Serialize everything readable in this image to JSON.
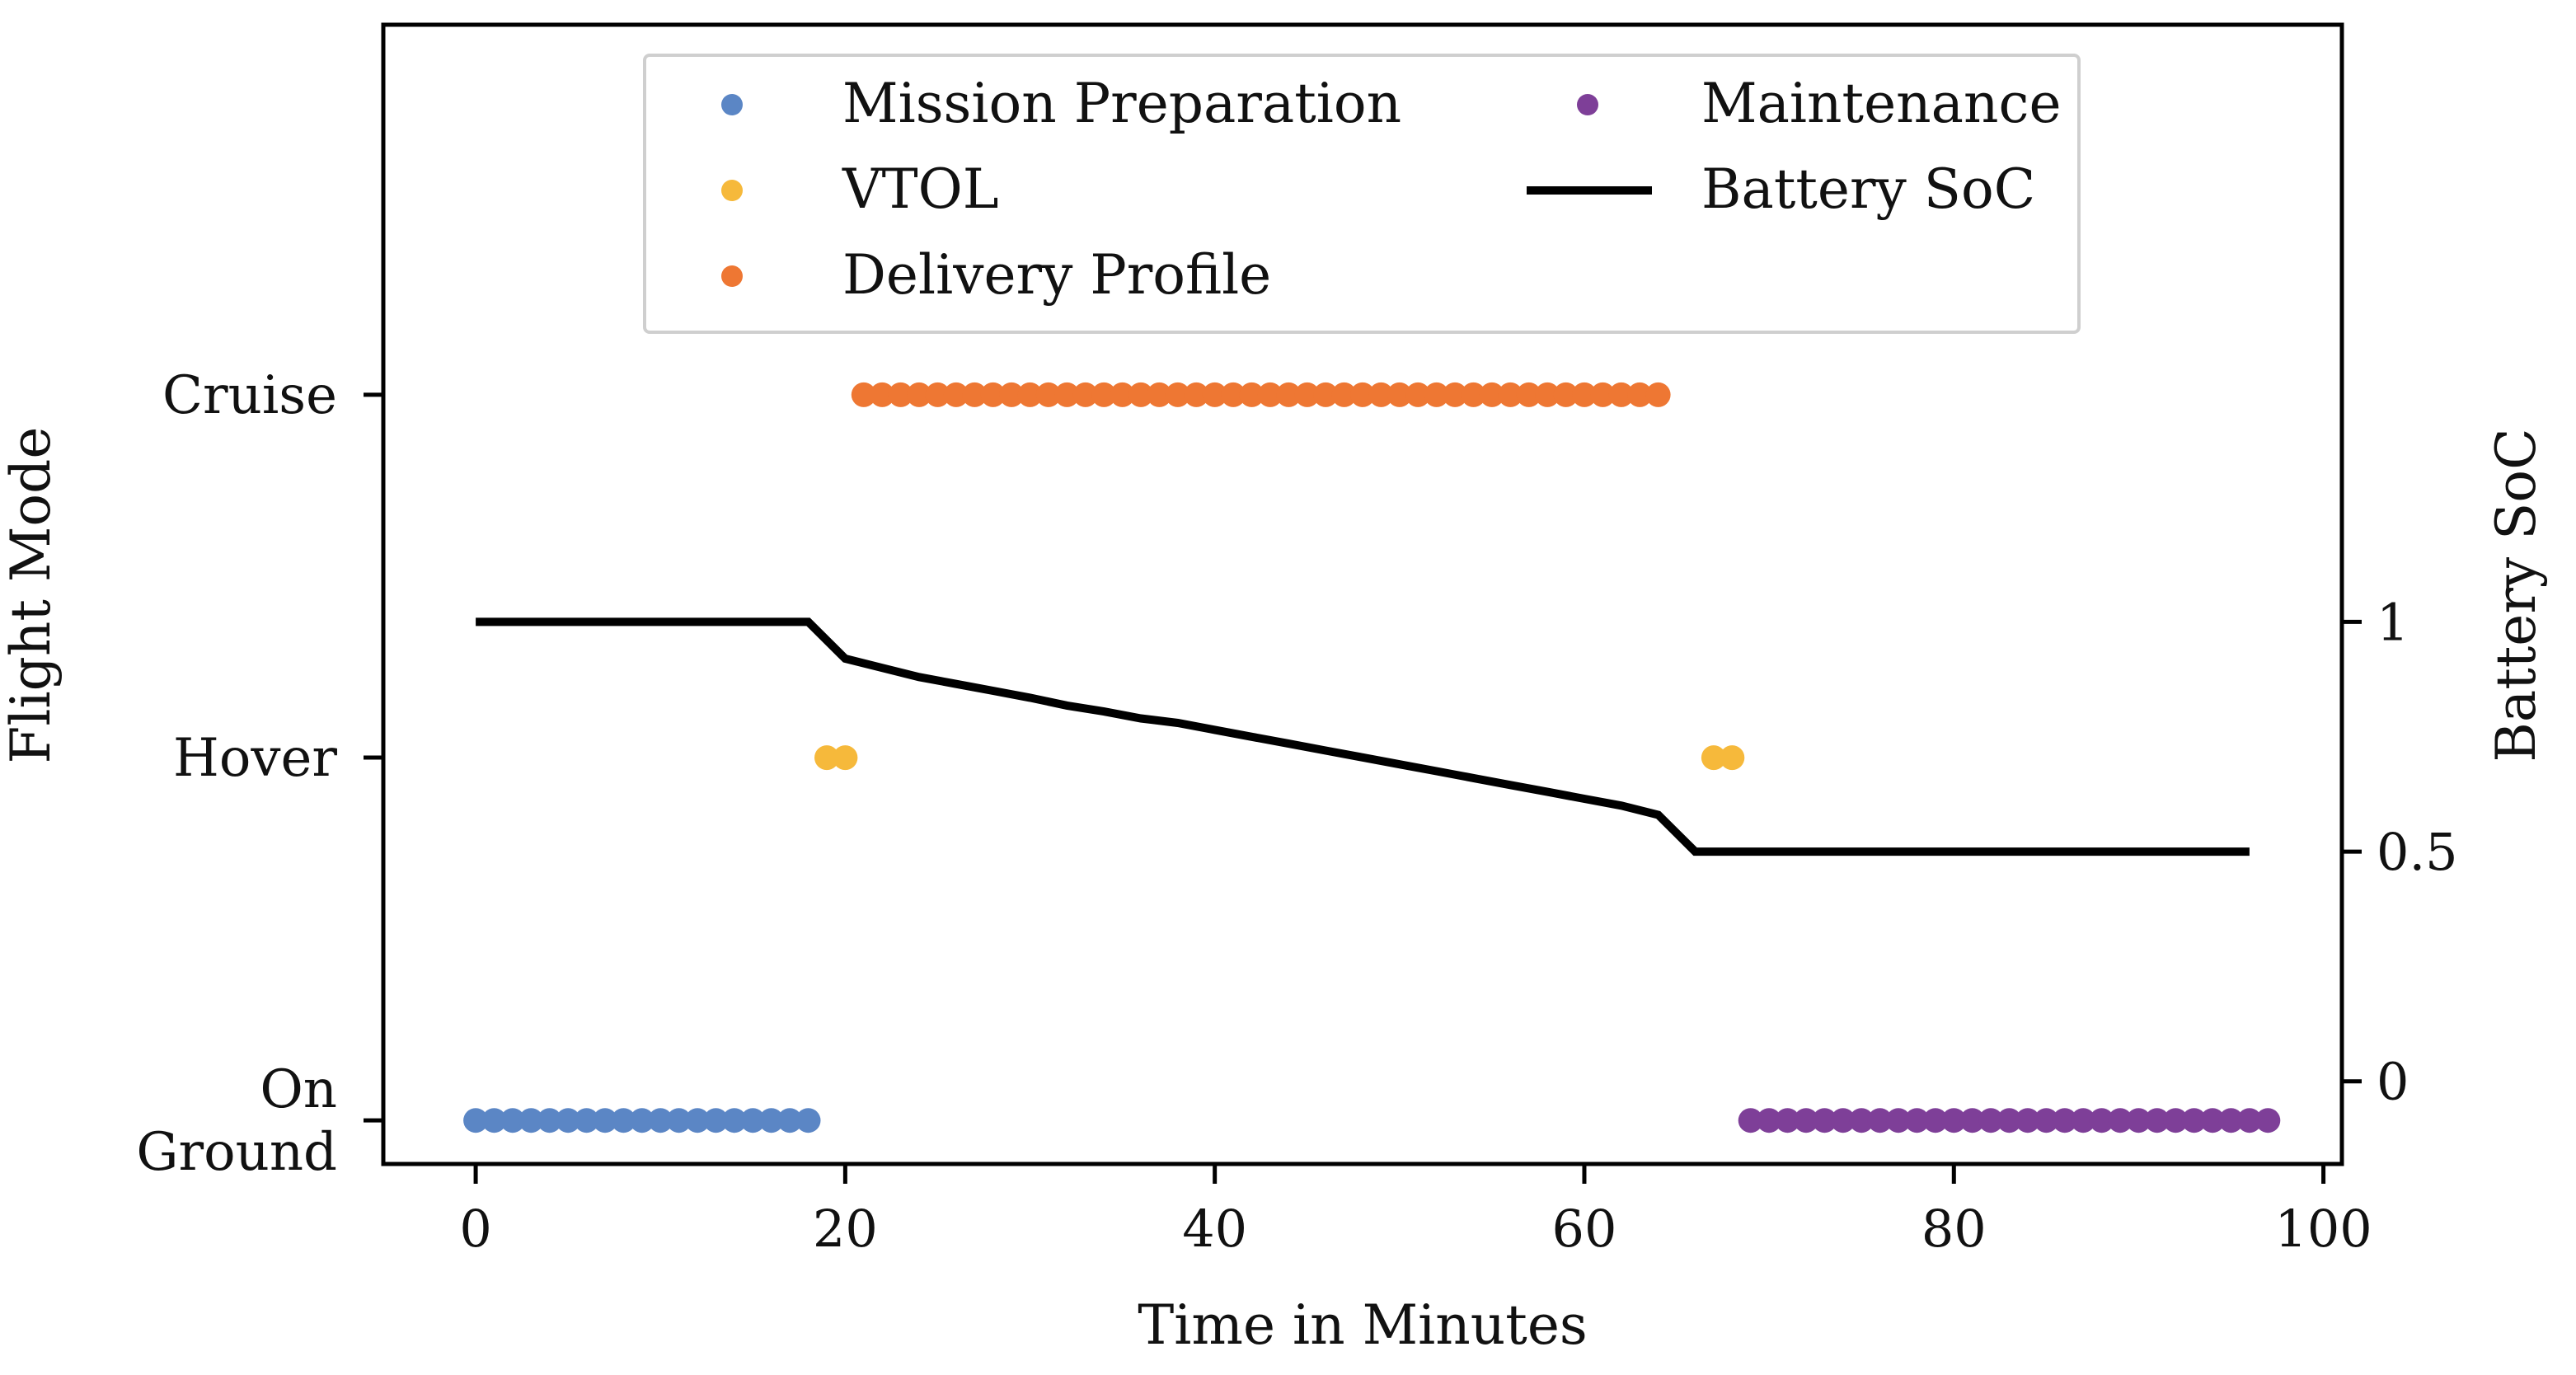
{
  "chart_data": {
    "type": "scatter",
    "xlabel": "Time in Minutes",
    "ylabel_left": "Flight Mode",
    "ylabel_right": "Battery SoC",
    "xlim": [
      -5,
      101
    ],
    "xticks": [
      0,
      20,
      40,
      60,
      80,
      100
    ],
    "flight_mode_categories": [
      {
        "name": "On Ground",
        "lines": [
          "On",
          "Ground"
        ],
        "level": 0
      },
      {
        "name": "Hover",
        "lines": [
          "Hover"
        ],
        "level": 1
      },
      {
        "name": "Cruise",
        "lines": [
          "Cruise"
        ],
        "level": 2
      }
    ],
    "left_ylim": [
      -0.12,
      3.02
    ],
    "right_ylim": [
      -0.18,
      2.3
    ],
    "right_ticks": [
      0,
      0.5,
      1
    ],
    "right_tick_labels": [
      "0",
      "0.5",
      "1"
    ],
    "legend": {
      "placement": "top-center",
      "entries": [
        {
          "label": "Mission Preparation",
          "kind": "marker",
          "color": "#5B86C5"
        },
        {
          "label": "Maintenance",
          "kind": "marker",
          "color": "#7E3F98"
        },
        {
          "label": "VTOL",
          "kind": "marker",
          "color": "#F6B93B"
        },
        {
          "label": "Battery SoC",
          "kind": "line",
          "color": "#000000"
        },
        {
          "label": "Delivery Profile",
          "kind": "marker",
          "color": "#EE7733"
        }
      ]
    },
    "series": [
      {
        "name": "Mission Preparation",
        "color": "#5B86C5",
        "level": 0,
        "x": [
          0,
          1,
          2,
          3,
          4,
          5,
          6,
          7,
          8,
          9,
          10,
          11,
          12,
          13,
          14,
          15,
          16,
          17,
          18
        ]
      },
      {
        "name": "VTOL",
        "color": "#F6B93B",
        "level": 1,
        "x": [
          19,
          20,
          67,
          68
        ]
      },
      {
        "name": "Delivery Profile",
        "color": "#EE7733",
        "level": 2,
        "x": [
          21,
          22,
          23,
          24,
          25,
          26,
          27,
          28,
          29,
          30,
          31,
          32,
          33,
          34,
          35,
          36,
          37,
          38,
          39,
          40,
          41,
          42,
          43,
          44,
          45,
          46,
          47,
          48,
          49,
          50,
          51,
          52,
          53,
          54,
          55,
          56,
          57,
          58,
          59,
          60,
          61,
          62,
          63,
          64
        ]
      },
      {
        "name": "Maintenance",
        "color": "#7E3F98",
        "level": 0,
        "x": [
          69,
          70,
          71,
          72,
          73,
          74,
          75,
          76,
          77,
          78,
          79,
          80,
          81,
          82,
          83,
          84,
          85,
          86,
          87,
          88,
          89,
          90,
          91,
          92,
          93,
          94,
          95,
          96,
          97
        ]
      }
    ],
    "battery_soc": {
      "name": "Battery SoC",
      "color": "#000000",
      "x": [
        0,
        18,
        20,
        22,
        24,
        26,
        28,
        30,
        32,
        34,
        36,
        38,
        40,
        42,
        44,
        46,
        48,
        50,
        52,
        54,
        56,
        58,
        60,
        62,
        64,
        66,
        96
      ],
      "y": [
        1.0,
        1.0,
        0.92,
        0.9,
        0.88,
        0.865,
        0.85,
        0.835,
        0.818,
        0.805,
        0.79,
        0.78,
        0.765,
        0.75,
        0.735,
        0.72,
        0.705,
        0.69,
        0.675,
        0.66,
        0.645,
        0.63,
        0.615,
        0.6,
        0.58,
        0.5,
        0.5
      ]
    }
  }
}
